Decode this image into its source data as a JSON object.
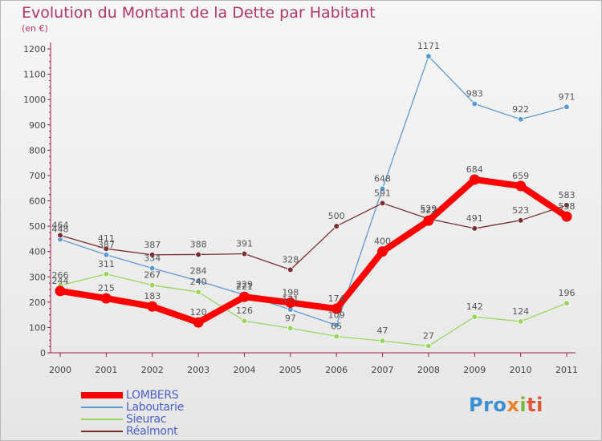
{
  "title": "Evolution du Montant de la Dette par Habitant",
  "subtitle": "(en €)",
  "logo": {
    "text": "Proxiti",
    "parts": [
      "Pro",
      "x",
      "i",
      "ti"
    ]
  },
  "colors": {
    "title": "#b53567",
    "axis": "#a01848",
    "label": "#555555",
    "legend_text": "#4a5ec8"
  },
  "chart_data": {
    "type": "line",
    "x": [
      "2000",
      "2001",
      "2002",
      "2003",
      "2004",
      "2005",
      "2006",
      "2007",
      "2008",
      "2009",
      "2010",
      "2011"
    ],
    "ylim": [
      0,
      1200
    ],
    "yticks": [
      0,
      100,
      200,
      300,
      400,
      500,
      600,
      700,
      800,
      900,
      1000,
      1100,
      1200
    ],
    "grid": false,
    "legend_position": "bottom-left",
    "series": [
      {
        "name": "LOMBERS",
        "color": "#ff0000",
        "values": [
          244,
          215,
          183,
          120,
          221,
          198,
          174,
          400,
          522,
          684,
          659,
          538
        ]
      },
      {
        "name": "Laboutarie",
        "color": "#5b9bd5",
        "values": [
          448,
          387,
          334,
          284,
          229,
          171,
          109,
          648,
          1171,
          983,
          922,
          971
        ]
      },
      {
        "name": "Sieurac",
        "color": "#99d65e",
        "values": [
          266,
          311,
          267,
          240,
          126,
          97,
          65,
          47,
          27,
          142,
          124,
          196
        ]
      },
      {
        "name": "Réalmont",
        "color": "#7a2e2e",
        "values": [
          464,
          411,
          387,
          388,
          391,
          328,
          500,
          591,
          529,
          491,
          523,
          583
        ]
      }
    ]
  }
}
